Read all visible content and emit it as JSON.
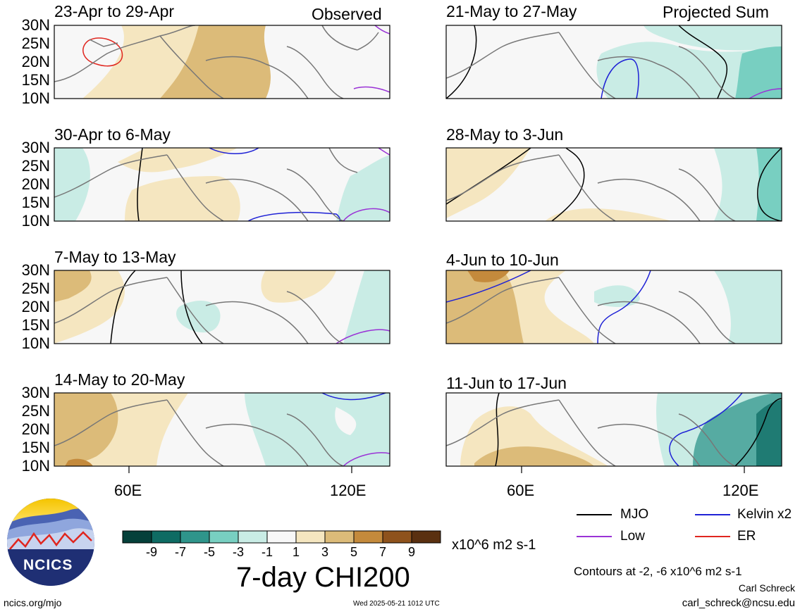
{
  "header": {
    "left_label": "Observed",
    "right_label": "Projected Sum"
  },
  "panels": [
    {
      "title": "23-Apr to 29-Apr"
    },
    {
      "title": "30-Apr to 6-May"
    },
    {
      "title": "7-May to 13-May"
    },
    {
      "title": "14-May to 20-May"
    },
    {
      "title": "21-May to 27-May"
    },
    {
      "title": "28-May to 3-Jun"
    },
    {
      "title": "4-Jun to 10-Jun"
    },
    {
      "title": "11-Jun to 17-Jun"
    }
  ],
  "latitude_labels": [
    "30N",
    "25N",
    "20N",
    "15N",
    "10N"
  ],
  "longitude_labels": [
    "60E",
    "120E"
  ],
  "colorbar": {
    "ticks": [
      "-9",
      "-7",
      "-5",
      "-3",
      "-1",
      "1",
      "3",
      "5",
      "7",
      "9"
    ],
    "colors": [
      "#05403a",
      "#0e6b63",
      "#2f958b",
      "#78cfc1",
      "#c9ece5",
      "#f7f7f7",
      "#f5e6c0",
      "#dcbb79",
      "#c48a3c",
      "#8e521c",
      "#5a3010"
    ],
    "unit": "x10^6 m2 s-1",
    "title": "7-day CHI200"
  },
  "legend": [
    {
      "label": "MJO",
      "color": "#000000"
    },
    {
      "label": "Kelvin x2",
      "color": "#1f22d6"
    },
    {
      "label": "Low",
      "color": "#9a33d6"
    },
    {
      "label": "ER",
      "color": "#e0261f"
    }
  ],
  "footer": {
    "contours_note": "Contours at -2, -6 x10^6 m2 s-1",
    "author": "Carl Schreck",
    "email": "carl_schreck@ncsu.edu",
    "site": "ncics.org/mjo",
    "timestamp": "Wed 2025-05-21 1012 UTC",
    "logo_text": "NCICS"
  }
}
